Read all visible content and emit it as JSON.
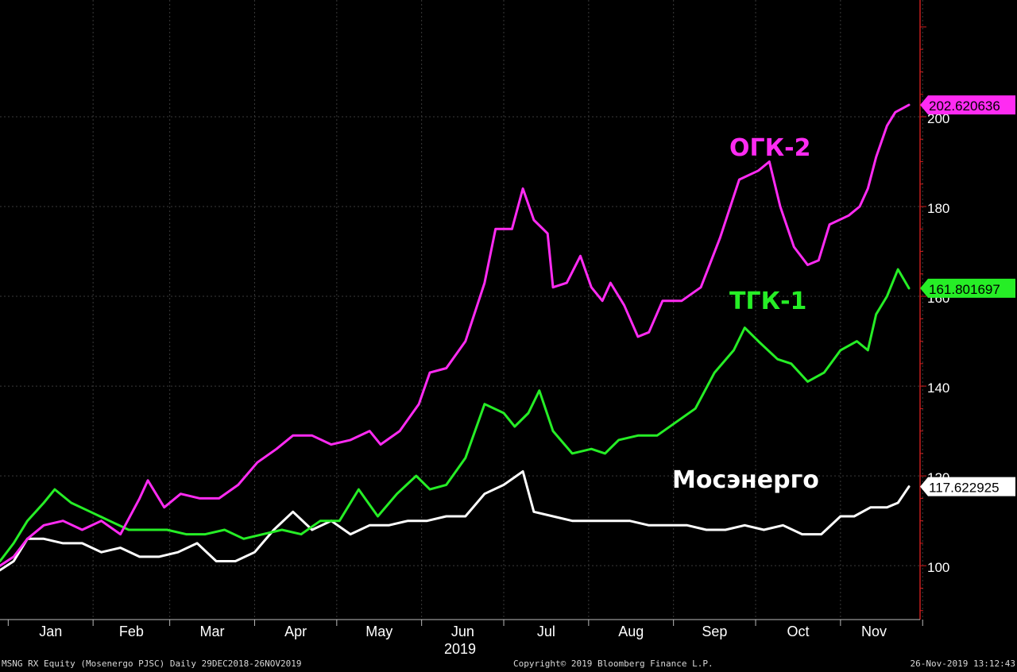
{
  "chart_data": {
    "type": "line",
    "title": "",
    "xlabel": "2019",
    "ylabel": "",
    "ylim": [
      88,
      226
    ],
    "yticks": [
      100,
      120,
      140,
      160,
      180,
      200
    ],
    "month_labels": [
      "Jan",
      "Feb",
      "Mar",
      "Apr",
      "May",
      "Jun",
      "Jul",
      "Aug",
      "Sep",
      "Oct",
      "Nov"
    ],
    "x_start": "2018-12-29",
    "x_end": "2019-11-26",
    "grid": true,
    "series": [
      {
        "name": "ОГК-2",
        "color": "#ff2bf2",
        "last_value_label": "202.620636",
        "points": [
          [
            "2018-12-29",
            100
          ],
          [
            "2019-01-03",
            102
          ],
          [
            "2019-01-08",
            106
          ],
          [
            "2019-01-14",
            109
          ],
          [
            "2019-01-21",
            110
          ],
          [
            "2019-01-28",
            108
          ],
          [
            "2019-02-04",
            110
          ],
          [
            "2019-02-11",
            107
          ],
          [
            "2019-02-18",
            115
          ],
          [
            "2019-02-21",
            119
          ],
          [
            "2019-02-27",
            113
          ],
          [
            "2019-03-05",
            116
          ],
          [
            "2019-03-12",
            115
          ],
          [
            "2019-03-19",
            115
          ],
          [
            "2019-03-26",
            118
          ],
          [
            "2019-04-02",
            123
          ],
          [
            "2019-04-09",
            126
          ],
          [
            "2019-04-15",
            129
          ],
          [
            "2019-04-22",
            129
          ],
          [
            "2019-04-29",
            127
          ],
          [
            "2019-05-06",
            128
          ],
          [
            "2019-05-13",
            130
          ],
          [
            "2019-05-17",
            127
          ],
          [
            "2019-05-24",
            130
          ],
          [
            "2019-05-31",
            136
          ],
          [
            "2019-06-04",
            143
          ],
          [
            "2019-06-10",
            144
          ],
          [
            "2019-06-17",
            150
          ],
          [
            "2019-06-24",
            163
          ],
          [
            "2019-06-28",
            175
          ],
          [
            "2019-07-04",
            175
          ],
          [
            "2019-07-08",
            184
          ],
          [
            "2019-07-12",
            177
          ],
          [
            "2019-07-17",
            174
          ],
          [
            "2019-07-19",
            162
          ],
          [
            "2019-07-24",
            163
          ],
          [
            "2019-07-29",
            169
          ],
          [
            "2019-08-02",
            162
          ],
          [
            "2019-08-06",
            159
          ],
          [
            "2019-08-09",
            163
          ],
          [
            "2019-08-14",
            158
          ],
          [
            "2019-08-19",
            151
          ],
          [
            "2019-08-23",
            152
          ],
          [
            "2019-08-28",
            159
          ],
          [
            "2019-09-04",
            159
          ],
          [
            "2019-09-11",
            162
          ],
          [
            "2019-09-18",
            173
          ],
          [
            "2019-09-25",
            186
          ],
          [
            "2019-10-02",
            188
          ],
          [
            "2019-10-06",
            190
          ],
          [
            "2019-10-10",
            180
          ],
          [
            "2019-10-15",
            171
          ],
          [
            "2019-10-20",
            167
          ],
          [
            "2019-10-24",
            168
          ],
          [
            "2019-10-28",
            176
          ],
          [
            "2019-11-04",
            178
          ],
          [
            "2019-11-08",
            180
          ],
          [
            "2019-11-11",
            184
          ],
          [
            "2019-11-14",
            191
          ],
          [
            "2019-11-18",
            198
          ],
          [
            "2019-11-21",
            201
          ],
          [
            "2019-11-26",
            202.62
          ]
        ]
      },
      {
        "name": "ТГК-1",
        "color": "#26ee26",
        "last_value_label": "161.801697",
        "points": [
          [
            "2018-12-29",
            101
          ],
          [
            "2019-01-03",
            105
          ],
          [
            "2019-01-08",
            110
          ],
          [
            "2019-01-14",
            114
          ],
          [
            "2019-01-18",
            117
          ],
          [
            "2019-01-24",
            114
          ],
          [
            "2019-01-31",
            112
          ],
          [
            "2019-02-07",
            110
          ],
          [
            "2019-02-14",
            108
          ],
          [
            "2019-02-21",
            108
          ],
          [
            "2019-02-28",
            108
          ],
          [
            "2019-03-07",
            107
          ],
          [
            "2019-03-14",
            107
          ],
          [
            "2019-03-21",
            108
          ],
          [
            "2019-03-28",
            106
          ],
          [
            "2019-04-04",
            107
          ],
          [
            "2019-04-11",
            108
          ],
          [
            "2019-04-18",
            107
          ],
          [
            "2019-04-25",
            110
          ],
          [
            "2019-05-02",
            110
          ],
          [
            "2019-05-09",
            117
          ],
          [
            "2019-05-16",
            111
          ],
          [
            "2019-05-23",
            116
          ],
          [
            "2019-05-30",
            120
          ],
          [
            "2019-06-04",
            117
          ],
          [
            "2019-06-10",
            118
          ],
          [
            "2019-06-17",
            124
          ],
          [
            "2019-06-24",
            136
          ],
          [
            "2019-07-01",
            134
          ],
          [
            "2019-07-05",
            131
          ],
          [
            "2019-07-10",
            134
          ],
          [
            "2019-07-14",
            139
          ],
          [
            "2019-07-19",
            130
          ],
          [
            "2019-07-26",
            125
          ],
          [
            "2019-08-02",
            126
          ],
          [
            "2019-08-07",
            125
          ],
          [
            "2019-08-12",
            128
          ],
          [
            "2019-08-19",
            129
          ],
          [
            "2019-08-26",
            129
          ],
          [
            "2019-09-02",
            132
          ],
          [
            "2019-09-09",
            135
          ],
          [
            "2019-09-16",
            143
          ],
          [
            "2019-09-23",
            148
          ],
          [
            "2019-09-27",
            153
          ],
          [
            "2019-10-02",
            150
          ],
          [
            "2019-10-09",
            146
          ],
          [
            "2019-10-14",
            145
          ],
          [
            "2019-10-20",
            141
          ],
          [
            "2019-10-26",
            143
          ],
          [
            "2019-11-01",
            148
          ],
          [
            "2019-11-07",
            150
          ],
          [
            "2019-11-11",
            148
          ],
          [
            "2019-11-14",
            156
          ],
          [
            "2019-11-18",
            160
          ],
          [
            "2019-11-22",
            166
          ],
          [
            "2019-11-26",
            161.8
          ]
        ]
      },
      {
        "name": "Мосэнерго",
        "color": "#ffffff",
        "last_value_label": "117.622925",
        "points": [
          [
            "2018-12-29",
            99
          ],
          [
            "2019-01-03",
            101
          ],
          [
            "2019-01-08",
            106
          ],
          [
            "2019-01-14",
            106
          ],
          [
            "2019-01-21",
            105
          ],
          [
            "2019-01-28",
            105
          ],
          [
            "2019-02-04",
            103
          ],
          [
            "2019-02-11",
            104
          ],
          [
            "2019-02-18",
            102
          ],
          [
            "2019-02-25",
            102
          ],
          [
            "2019-03-04",
            103
          ],
          [
            "2019-03-11",
            105
          ],
          [
            "2019-03-18",
            101
          ],
          [
            "2019-03-25",
            101
          ],
          [
            "2019-04-01",
            103
          ],
          [
            "2019-04-08",
            108
          ],
          [
            "2019-04-15",
            112
          ],
          [
            "2019-04-22",
            108
          ],
          [
            "2019-04-29",
            110
          ],
          [
            "2019-05-06",
            107
          ],
          [
            "2019-05-13",
            109
          ],
          [
            "2019-05-20",
            109
          ],
          [
            "2019-05-27",
            110
          ],
          [
            "2019-06-03",
            110
          ],
          [
            "2019-06-10",
            111
          ],
          [
            "2019-06-17",
            111
          ],
          [
            "2019-06-24",
            116
          ],
          [
            "2019-07-01",
            118
          ],
          [
            "2019-07-08",
            121
          ],
          [
            "2019-07-12",
            112
          ],
          [
            "2019-07-19",
            111
          ],
          [
            "2019-07-26",
            110
          ],
          [
            "2019-08-02",
            110
          ],
          [
            "2019-08-09",
            110
          ],
          [
            "2019-08-16",
            110
          ],
          [
            "2019-08-23",
            109
          ],
          [
            "2019-08-30",
            109
          ],
          [
            "2019-09-06",
            109
          ],
          [
            "2019-09-13",
            108
          ],
          [
            "2019-09-20",
            108
          ],
          [
            "2019-09-27",
            109
          ],
          [
            "2019-10-04",
            108
          ],
          [
            "2019-10-11",
            109
          ],
          [
            "2019-10-18",
            107
          ],
          [
            "2019-10-25",
            107
          ],
          [
            "2019-11-01",
            111
          ],
          [
            "2019-11-06",
            111
          ],
          [
            "2019-11-12",
            113
          ],
          [
            "2019-11-18",
            113
          ],
          [
            "2019-11-22",
            114
          ],
          [
            "2019-11-26",
            117.62
          ]
        ]
      }
    ]
  },
  "labels": {
    "ogk2": "ОГК-2",
    "tgk1": "ТГК-1",
    "mosenergo": "Мосэнерго"
  },
  "footer": {
    "left": "MSNG RX Equity (Mosenergo PJSC)  Daily 29DEC2018-26NOV2019",
    "center": "Copyright© 2019 Bloomberg Finance L.P.",
    "right": "26-Nov-2019 13:12:43"
  },
  "colors": {
    "background": "#000000",
    "grid": "#3a3a3a",
    "axis": "#c81e1e"
  }
}
